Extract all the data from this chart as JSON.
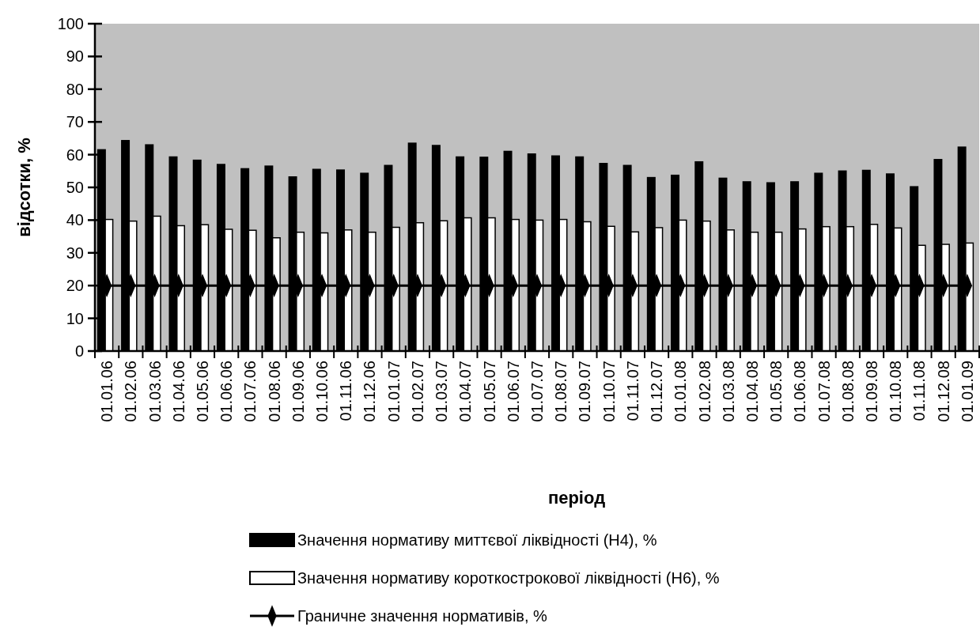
{
  "chart_data": {
    "type": "bar",
    "xlabel": "період",
    "ylabel": "відсотки, %",
    "categories": [
      "01.01.06",
      "01.02.06",
      "01.03.06",
      "01.04.06",
      "01.05.06",
      "01.06.06",
      "01.07.06",
      "01.08.06",
      "01.09.06",
      "01.10.06",
      "01.11.06",
      "01.12.06",
      "01.01.07",
      "01.02.07",
      "01.03.07",
      "01.04.07",
      "01.05.07",
      "01.06.07",
      "01.07.07",
      "01.08.07",
      "01.09.07",
      "01.10.07",
      "01.11.07",
      "01.12.07",
      "01.01.08",
      "01.02.08",
      "01.03.08",
      "01.04.08",
      "01.05.08",
      "01.06.08",
      "01.07.08",
      "01.08.08",
      "01.09.08",
      "01.10.08",
      "01.11.08",
      "01.12.08",
      "01.01.09"
    ],
    "series": [
      {
        "name": "Значення нормативу миттєвої ліквідності (Н4), %",
        "color": "#000000",
        "values": [
          61.5,
          64.3,
          63,
          59.3,
          58.3,
          57,
          55.7,
          56.5,
          53.2,
          55.5,
          55.3,
          54.3,
          56.7,
          63.5,
          62.8,
          59.3,
          59.2,
          61,
          60.2,
          59.6,
          59.3,
          57.3,
          56.7,
          53,
          53.7,
          57.8,
          52.8,
          51.7,
          51.4,
          51.7,
          54.3,
          55,
          55.2,
          54.1,
          50.2,
          58.5,
          62.3
        ]
      },
      {
        "name": "Значення нормативу короткострокової ліквідності (Н6), %",
        "color": "#ffffff",
        "values": [
          40.2,
          39.7,
          41.2,
          38.3,
          38.6,
          37.2,
          36.9,
          34.6,
          36.3,
          36.1,
          37,
          36.3,
          37.8,
          39.2,
          39.8,
          40.7,
          40.7,
          40.2,
          40,
          40.2,
          39.5,
          38.1,
          36.4,
          37.7,
          40,
          39.7,
          37,
          36.3,
          36.3,
          37.3,
          38,
          38,
          38.7,
          37.6,
          32.3,
          32.6,
          33
        ]
      },
      {
        "name": "Граничне значення нормативів, %",
        "type": "line",
        "color": "#000000",
        "marker": "diamond",
        "values": [
          20,
          20,
          20,
          20,
          20,
          20,
          20,
          20,
          20,
          20,
          20,
          20,
          20,
          20,
          20,
          20,
          20,
          20,
          20,
          20,
          20,
          20,
          20,
          20,
          20,
          20,
          20,
          20,
          20,
          20,
          20,
          20,
          20,
          20,
          20,
          20,
          20
        ]
      }
    ],
    "ylim": [
      0,
      100
    ],
    "yticks": [
      0,
      10,
      20,
      30,
      40,
      50,
      60,
      70,
      80,
      90,
      100
    ],
    "grid": false,
    "legend": "bottom"
  }
}
